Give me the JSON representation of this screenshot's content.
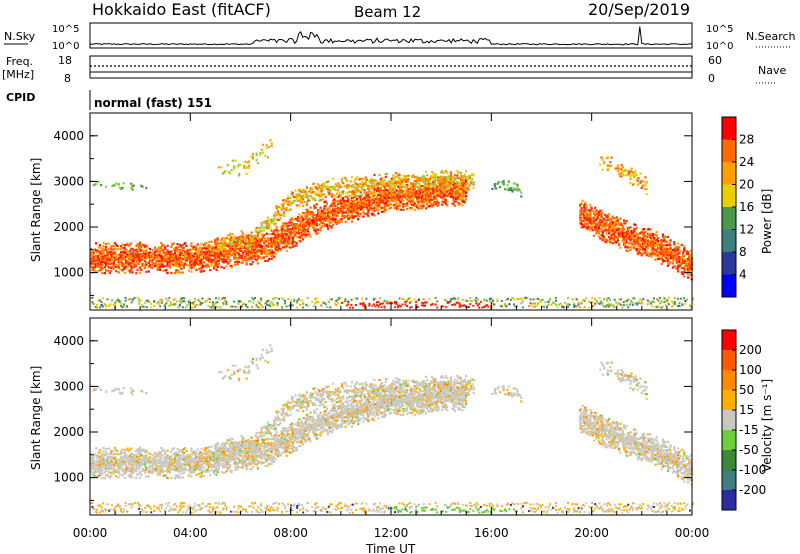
{
  "header": {
    "site": "Hokkaido East (fitACF)",
    "beam": "Beam 12",
    "date": "20/Sep/2019"
  },
  "status_panel": {
    "nsky_label": "N.Sky",
    "nsky_ticks": [
      "10^5",
      "10^0"
    ],
    "nsearch_label": "N.Search",
    "nsearch_ticks": [
      "10^5",
      "10^0"
    ],
    "freq_label_1": "Freq.",
    "freq_label_2": "[MHz]",
    "freq_ticks": [
      "18",
      "8"
    ],
    "nave_label": "Nave",
    "nave_ticks": [
      "60",
      "0"
    ],
    "cpid_label": "CPID",
    "cpid_value": "normal (fast) 151"
  },
  "colors": {
    "power": [
      "#0000ff",
      "#2a3a9c",
      "#3f7f7f",
      "#4a9a4a",
      "#8bd04a",
      "#e8d000",
      "#ffa000",
      "#ff6a00",
      "#ff2a00",
      "#ff0000"
    ],
    "velocity": [
      "#2c2ca0",
      "#3f7f7f",
      "#3a8a3a",
      "#6cd03a",
      "#c8c8c0",
      "#ffb000",
      "#ff8a00",
      "#ff5a00",
      "#ff0000"
    ]
  },
  "chart_data": [
    {
      "type": "heatmap",
      "quantity": "power",
      "xlabel": "",
      "ylabel": "Slant Range [km]",
      "xlim": [
        "00:00",
        "00:00"
      ],
      "ylim": [
        180,
        4500
      ],
      "y_ticks": [
        "1000",
        "2000",
        "3000",
        "4000"
      ],
      "colorbar_label": "Power [dB]",
      "colorbar_ticks": [
        "4",
        "8",
        "12",
        "16",
        "20",
        "24",
        "28"
      ]
    },
    {
      "type": "heatmap",
      "quantity": "velocity",
      "xlabel": "Time UT",
      "ylabel": "Slant Range [km]",
      "x_ticks": [
        "00:00",
        "04:00",
        "08:00",
        "12:00",
        "16:00",
        "20:00",
        "00:00"
      ],
      "ylim": [
        180,
        4500
      ],
      "y_ticks": [
        "1000",
        "2000",
        "3000",
        "4000"
      ],
      "colorbar_label": "Velocity [m s⁻¹]",
      "colorbar_ticks": [
        "200",
        "100",
        "50",
        "15",
        "-15",
        "-50",
        "-100",
        "-200"
      ]
    }
  ]
}
